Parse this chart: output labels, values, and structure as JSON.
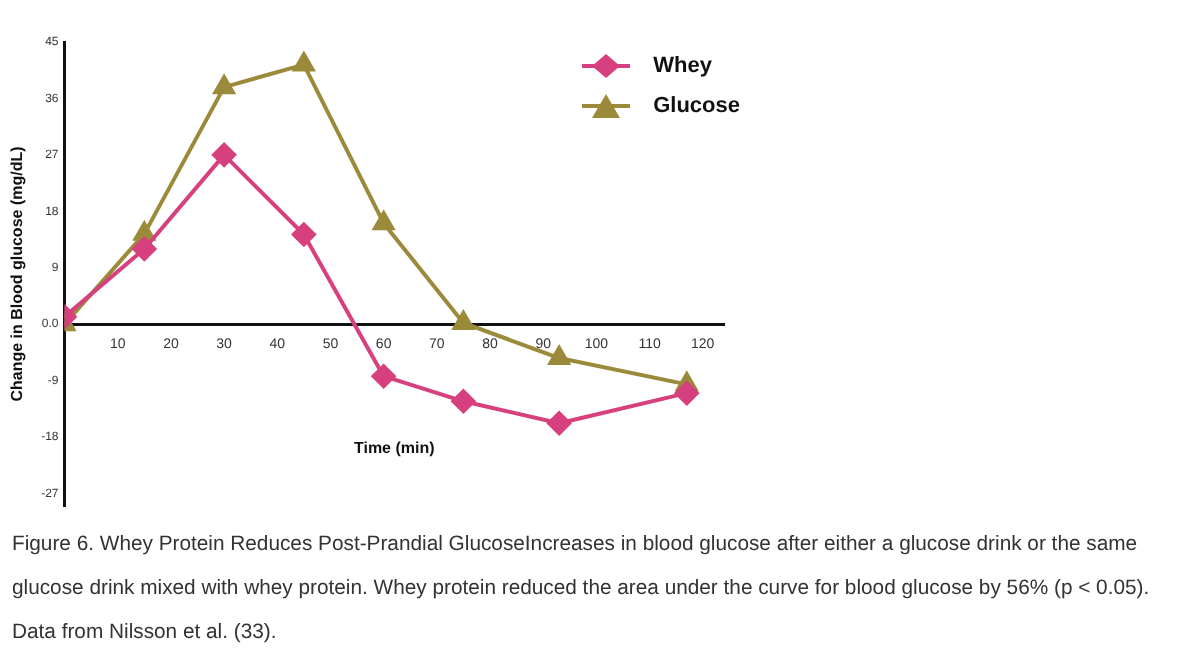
{
  "chart_data": {
    "type": "line",
    "xlabel": "Time (min)",
    "ylabel": "Change in Blood glucose (mg/dL)",
    "x": [
      0,
      15,
      30,
      45,
      60,
      75,
      93,
      117
    ],
    "series": [
      {
        "name": "Whey",
        "color": "#d6407f",
        "marker": "diamond",
        "values": [
          1.2,
          12,
          27,
          14.3,
          -8.3,
          -12.3,
          -15.8,
          -11
        ]
      },
      {
        "name": "Glucose",
        "color": "#9a8a3a",
        "marker": "triangle",
        "values": [
          0,
          14.4,
          37.8,
          41.4,
          16.1,
          0.2,
          -5.4,
          -9.6
        ]
      }
    ],
    "xlim": [
      0,
      124
    ],
    "xticks": [
      10,
      20,
      30,
      40,
      50,
      60,
      70,
      80,
      90,
      100,
      110,
      120
    ],
    "ylim": [
      -29,
      45
    ],
    "yticks": [
      -27,
      -18,
      -9,
      {
        "value": 0,
        "label": "0.0"
      },
      9,
      18,
      27,
      36,
      45
    ],
    "grid": false,
    "legend": "top right",
    "line_style": "solid",
    "annotations": [
      "Figure 6. Whey Protein Reduces Post-Prandial GlucoseIncreases in blood glucose after either a glucose drink or the same glucose drink mixed with whey protein. Whey protein reduced the area under the curve for blood glucose by 56% (p < 0.05). Data from Nilsson et al. (33)."
    ]
  }
}
